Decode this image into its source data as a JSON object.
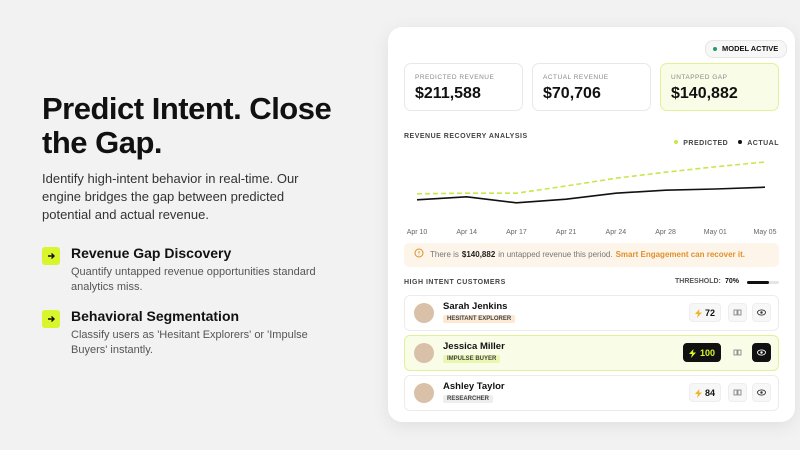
{
  "hero": {
    "title": "Predict Intent. Close the Gap.",
    "description": "Identify high-intent behavior in real-time. Our engine bridges the gap between predicted potential and actual revenue.",
    "features": [
      {
        "title": "Revenue Gap Discovery",
        "description": "Quantify untapped revenue opportunities standard analytics miss."
      },
      {
        "title": "Behavioral Segmentation",
        "description": "Classify users as 'Hesitant Explorers' or 'Impulse Buyers' instantly."
      }
    ]
  },
  "dashboard": {
    "status": "MODEL ACTIVE",
    "kpis": [
      {
        "label": "PREDICTED REVENUE",
        "value": "$211,588"
      },
      {
        "label": "ACTUAL REVENUE",
        "value": "$70,706"
      },
      {
        "label": "UNTAPPED GAP",
        "value": "$140,882"
      }
    ]
  },
  "chart_data": {
    "type": "line",
    "title": "REVENUE RECOVERY ANALYSIS",
    "categories": [
      "Apr 10",
      "Apr 14",
      "Apr 17",
      "Apr 21",
      "Apr 24",
      "Apr 28",
      "May 01",
      "May 05"
    ],
    "series": [
      {
        "name": "PREDICTED",
        "color": "#c5e84a",
        "dashed": true,
        "values": [
          27,
          28,
          28,
          40,
          53,
          63,
          72,
          80
        ]
      },
      {
        "name": "ACTUAL",
        "color": "#111111",
        "dashed": false,
        "values": [
          17,
          22,
          12,
          18,
          28,
          33,
          35,
          38
        ]
      }
    ],
    "ylim": [
      0,
      100
    ]
  },
  "alert": {
    "segments": [
      "There is",
      "$140,882",
      "in untapped revenue this period.",
      "Smart Engagement can recover it."
    ]
  },
  "customers": {
    "title": "HIGH INTENT CUSTOMERS",
    "threshold_label": "THRESHOLD:",
    "threshold": "70%",
    "rows": [
      {
        "name": "Sarah Jenkins",
        "tag": "HESITANT EXPLORER",
        "score": 72
      },
      {
        "name": "Jessica Miller",
        "tag": "IMPULSE BUYER",
        "score": 100
      },
      {
        "name": "Ashley Taylor",
        "tag": "RESEARCHER",
        "score": 84
      }
    ]
  }
}
